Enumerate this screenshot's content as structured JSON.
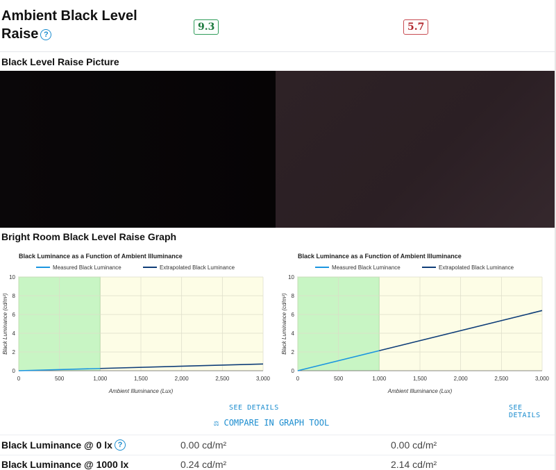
{
  "header": {
    "title": "Ambient Black Level Raise",
    "scores": [
      "9.3",
      "5.7"
    ]
  },
  "picture_section": {
    "title": "Black Level Raise Picture"
  },
  "graph_section": {
    "title": "Bright Room Black Level Raise Graph"
  },
  "chart_data": [
    {
      "type": "line",
      "title": "Black Luminance as a Function of Ambient Illuminance",
      "xlabel": "Ambient Illuminance (Lux)",
      "ylabel": "Black Luminance (cd/m²)",
      "xlim": [
        0,
        3000
      ],
      "ylim": [
        0,
        10
      ],
      "x_ticks": [
        "0",
        "500",
        "1,000",
        "1,500",
        "2,000",
        "2,500",
        "3,000"
      ],
      "y_ticks": [
        "0",
        "2",
        "4",
        "6",
        "8",
        "10"
      ],
      "legend_position": "top",
      "highlight_range_x": [
        0,
        1000
      ],
      "colors": {
        "measured": "#1a95e0",
        "extrapolated": "#0e3d78",
        "highlight": "#c8f5c4",
        "plot_bg": "#fdfde6"
      },
      "series": [
        {
          "name": "Measured Black Luminance",
          "x": [
            0,
            1000
          ],
          "y": [
            0,
            0.24
          ]
        },
        {
          "name": "Extrapolated Black Luminance",
          "x": [
            1000,
            3000
          ],
          "y": [
            0.24,
            0.72
          ]
        }
      ]
    },
    {
      "type": "line",
      "title": "Black Luminance as a Function of Ambient Illuminance",
      "xlabel": "Ambient Illuminance (Lux)",
      "ylabel": "Black Luminance (cd/m²)",
      "xlim": [
        0,
        3000
      ],
      "ylim": [
        0,
        10
      ],
      "x_ticks": [
        "0",
        "500",
        "1,000",
        "1,500",
        "2,000",
        "2,500",
        "3,000"
      ],
      "y_ticks": [
        "0",
        "2",
        "4",
        "6",
        "8",
        "10"
      ],
      "legend_position": "top",
      "highlight_range_x": [
        0,
        1000
      ],
      "colors": {
        "measured": "#1a95e0",
        "extrapolated": "#0e3d78",
        "highlight": "#c8f5c4",
        "plot_bg": "#fdfde6"
      },
      "series": [
        {
          "name": "Measured Black Luminance",
          "x": [
            0,
            1000
          ],
          "y": [
            0,
            2.14
          ]
        },
        {
          "name": "Extrapolated Black Luminance",
          "x": [
            1000,
            3000
          ],
          "y": [
            2.14,
            6.42
          ]
        }
      ]
    }
  ],
  "links": {
    "see_details": "SEE DETAILS",
    "compare_icon": "scale-icon",
    "compare": "COMPARE IN GRAPH TOOL"
  },
  "rows": [
    {
      "label": "Black Luminance @ 0 lx",
      "has_help": true,
      "values": [
        "0.00 cd/m²",
        "0.00 cd/m²"
      ]
    },
    {
      "label": "Black Luminance @ 1000 lx",
      "has_help": false,
      "values": [
        "0.24 cd/m²",
        "2.14 cd/m²"
      ]
    }
  ]
}
